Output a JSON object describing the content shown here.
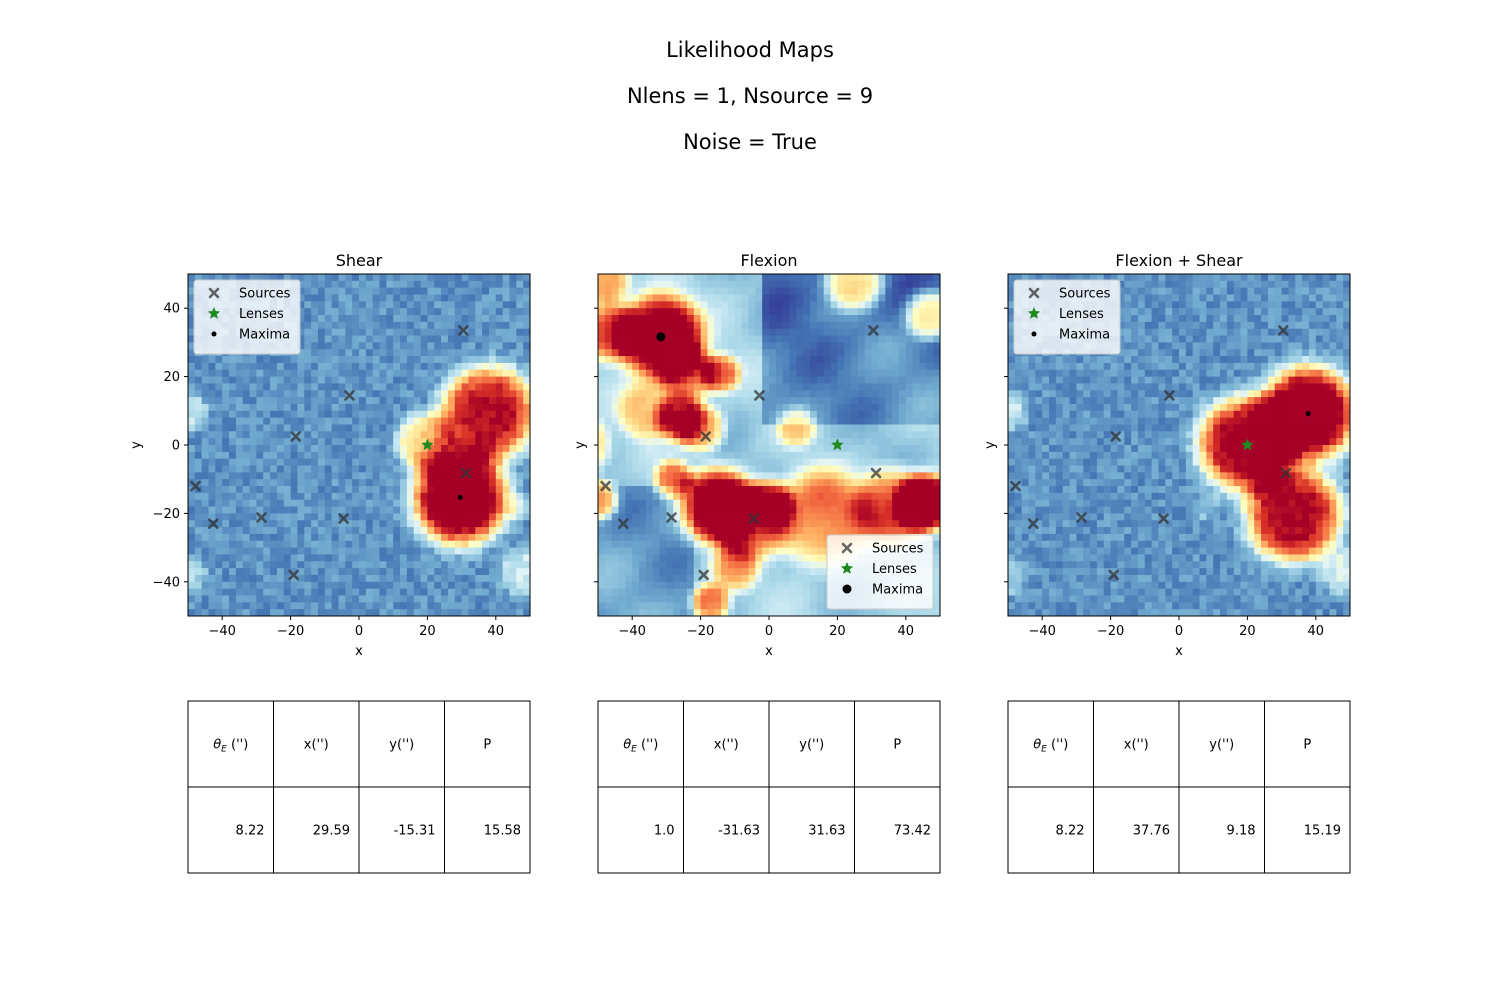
{
  "figure": {
    "title_lines": [
      "Likelihood Maps",
      "Nlens = 1, Nsource = 9",
      "Noise = True"
    ]
  },
  "chart_data": [
    {
      "type": "heatmap",
      "title": "Shear",
      "xlabel": "x",
      "ylabel": "y",
      "xlim": [
        -50,
        50
      ],
      "ylim": [
        -50,
        50
      ],
      "xticks": [
        -40,
        -20,
        0,
        20,
        40
      ],
      "yticks": [
        -40,
        -20,
        0,
        20,
        40
      ],
      "show_ytick_labels": true,
      "colormap": "RdYlBu_r",
      "legend": {
        "placement": "upper-left",
        "entries": [
          "Sources",
          "Lenses",
          "Maxima"
        ]
      },
      "sources": [
        [
          30.5,
          33.5
        ],
        [
          -2.8,
          14.5
        ],
        [
          -18.5,
          2.5
        ],
        [
          31.3,
          -8.2
        ],
        [
          -47.8,
          -12.0
        ],
        [
          -42.6,
          -23.0
        ],
        [
          -28.5,
          -21.2
        ],
        [
          -4.5,
          -21.5
        ],
        [
          -19.1,
          -38.0
        ]
      ],
      "lenses": [
        [
          20.0,
          0.0
        ]
      ],
      "maxima": [
        [
          29.59,
          -15.31
        ]
      ],
      "blobs": [
        [
          29.6,
          -15.3,
          10,
          1.0
        ],
        [
          37.8,
          9.2,
          10,
          0.82
        ],
        [
          19.6,
          0.8,
          6,
          0.48
        ],
        [
          48,
          -37,
          5,
          0.22
        ],
        [
          47,
          -18,
          3,
          0.15
        ],
        [
          -50,
          10,
          4,
          0.2
        ],
        [
          -50,
          -38,
          4,
          0.15
        ]
      ],
      "table": {
        "headers": [
          "θE ('')",
          "x('')",
          "y('')",
          "P"
        ],
        "rows": [
          [
            "8.22",
            "29.59",
            "-15.31",
            "15.58"
          ]
        ]
      }
    },
    {
      "type": "heatmap",
      "title": "Flexion",
      "xlabel": "x",
      "ylabel": "y",
      "xlim": [
        -50,
        50
      ],
      "ylim": [
        -50,
        50
      ],
      "xticks": [
        -40,
        -20,
        0,
        20,
        40
      ],
      "yticks": [
        -40,
        -20,
        0,
        20,
        40
      ],
      "show_ytick_labels": false,
      "colormap": "RdYlBu_r",
      "legend": {
        "placement": "lower-right",
        "entries": [
          "Sources",
          "Lenses",
          "Maxima"
        ]
      },
      "sources": [
        [
          30.5,
          33.5
        ],
        [
          -2.8,
          14.5
        ],
        [
          -18.5,
          2.5
        ],
        [
          31.3,
          -8.2
        ],
        [
          -47.8,
          -12.0
        ],
        [
          -42.6,
          -23.0
        ],
        [
          -28.5,
          -21.2
        ],
        [
          -4.5,
          -21.5
        ],
        [
          -19.1,
          -38.0
        ]
      ],
      "lenses": [
        [
          20.0,
          0.0
        ]
      ],
      "maxima": [
        [
          -31.63,
          31.63
        ]
      ],
      "blobs": [
        [
          -31.6,
          31.6,
          9,
          0.85
        ],
        [
          -46,
          33,
          6,
          0.55
        ],
        [
          -24,
          21,
          6,
          0.55
        ],
        [
          -20,
          5,
          5,
          0.45
        ],
        [
          -26,
          8,
          5,
          0.55
        ],
        [
          -14,
          21,
          4,
          0.5
        ],
        [
          -36,
          10,
          6,
          0.35
        ],
        [
          -28,
          -10,
          4,
          0.5
        ],
        [
          -15,
          -18,
          8,
          0.78
        ],
        [
          46,
          -17,
          6,
          0.95
        ],
        [
          36,
          -18,
          8,
          0.55
        ],
        [
          15,
          -21,
          10,
          0.5
        ],
        [
          -5,
          -22,
          8,
          0.5
        ],
        [
          0,
          -17,
          5,
          0.45
        ],
        [
          -17,
          -46,
          4,
          0.55
        ],
        [
          -10,
          -36,
          5,
          0.4
        ],
        [
          -50,
          -16,
          4,
          0.55
        ],
        [
          47,
          38,
          5,
          0.45
        ],
        [
          25,
          48,
          6,
          0.45
        ],
        [
          -48,
          48,
          5,
          0.5
        ],
        [
          8,
          5,
          4,
          0.3
        ],
        [
          -55,
          0,
          6,
          0.4
        ]
      ],
      "table": {
        "headers": [
          "θE ('')",
          "x('')",
          "y('')",
          "P"
        ],
        "rows": [
          [
            "1.0",
            "-31.63",
            "31.63",
            "73.42"
          ]
        ]
      }
    },
    {
      "type": "heatmap",
      "title": "Flexion + Shear",
      "xlabel": "x",
      "ylabel": "y",
      "xlim": [
        -50,
        50
      ],
      "ylim": [
        -50,
        50
      ],
      "xticks": [
        -40,
        -20,
        0,
        20,
        40
      ],
      "yticks": [
        -40,
        -20,
        0,
        20,
        40
      ],
      "show_ytick_labels": false,
      "colormap": "RdYlBu_r",
      "legend": {
        "placement": "upper-left",
        "entries": [
          "Sources",
          "Lenses",
          "Maxima"
        ]
      },
      "sources": [
        [
          30.5,
          33.5
        ],
        [
          -2.8,
          14.5
        ],
        [
          -18.5,
          2.5
        ],
        [
          31.3,
          -8.2
        ],
        [
          -47.8,
          -12.0
        ],
        [
          -42.6,
          -23.0
        ],
        [
          -28.5,
          -21.2
        ],
        [
          -4.5,
          -21.5
        ],
        [
          -19.1,
          -38.0
        ]
      ],
      "lenses": [
        [
          20.0,
          0.0
        ]
      ],
      "maxima": [
        [
          37.76,
          9.18
        ]
      ],
      "blobs": [
        [
          37.8,
          9.2,
          10,
          1.0
        ],
        [
          19.6,
          0.3,
          10,
          0.88
        ],
        [
          33.6,
          -20.4,
          10,
          0.85
        ],
        [
          48,
          -37,
          5,
          0.22
        ],
        [
          -50,
          10,
          4,
          0.2
        ],
        [
          -50,
          -38,
          4,
          0.15
        ],
        [
          8,
          -18,
          3,
          0.1
        ]
      ],
      "table": {
        "headers": [
          "θE ('')",
          "x('')",
          "y('')",
          "P"
        ],
        "rows": [
          [
            "8.22",
            "37.76",
            "9.18",
            "15.19"
          ]
        ]
      }
    }
  ]
}
